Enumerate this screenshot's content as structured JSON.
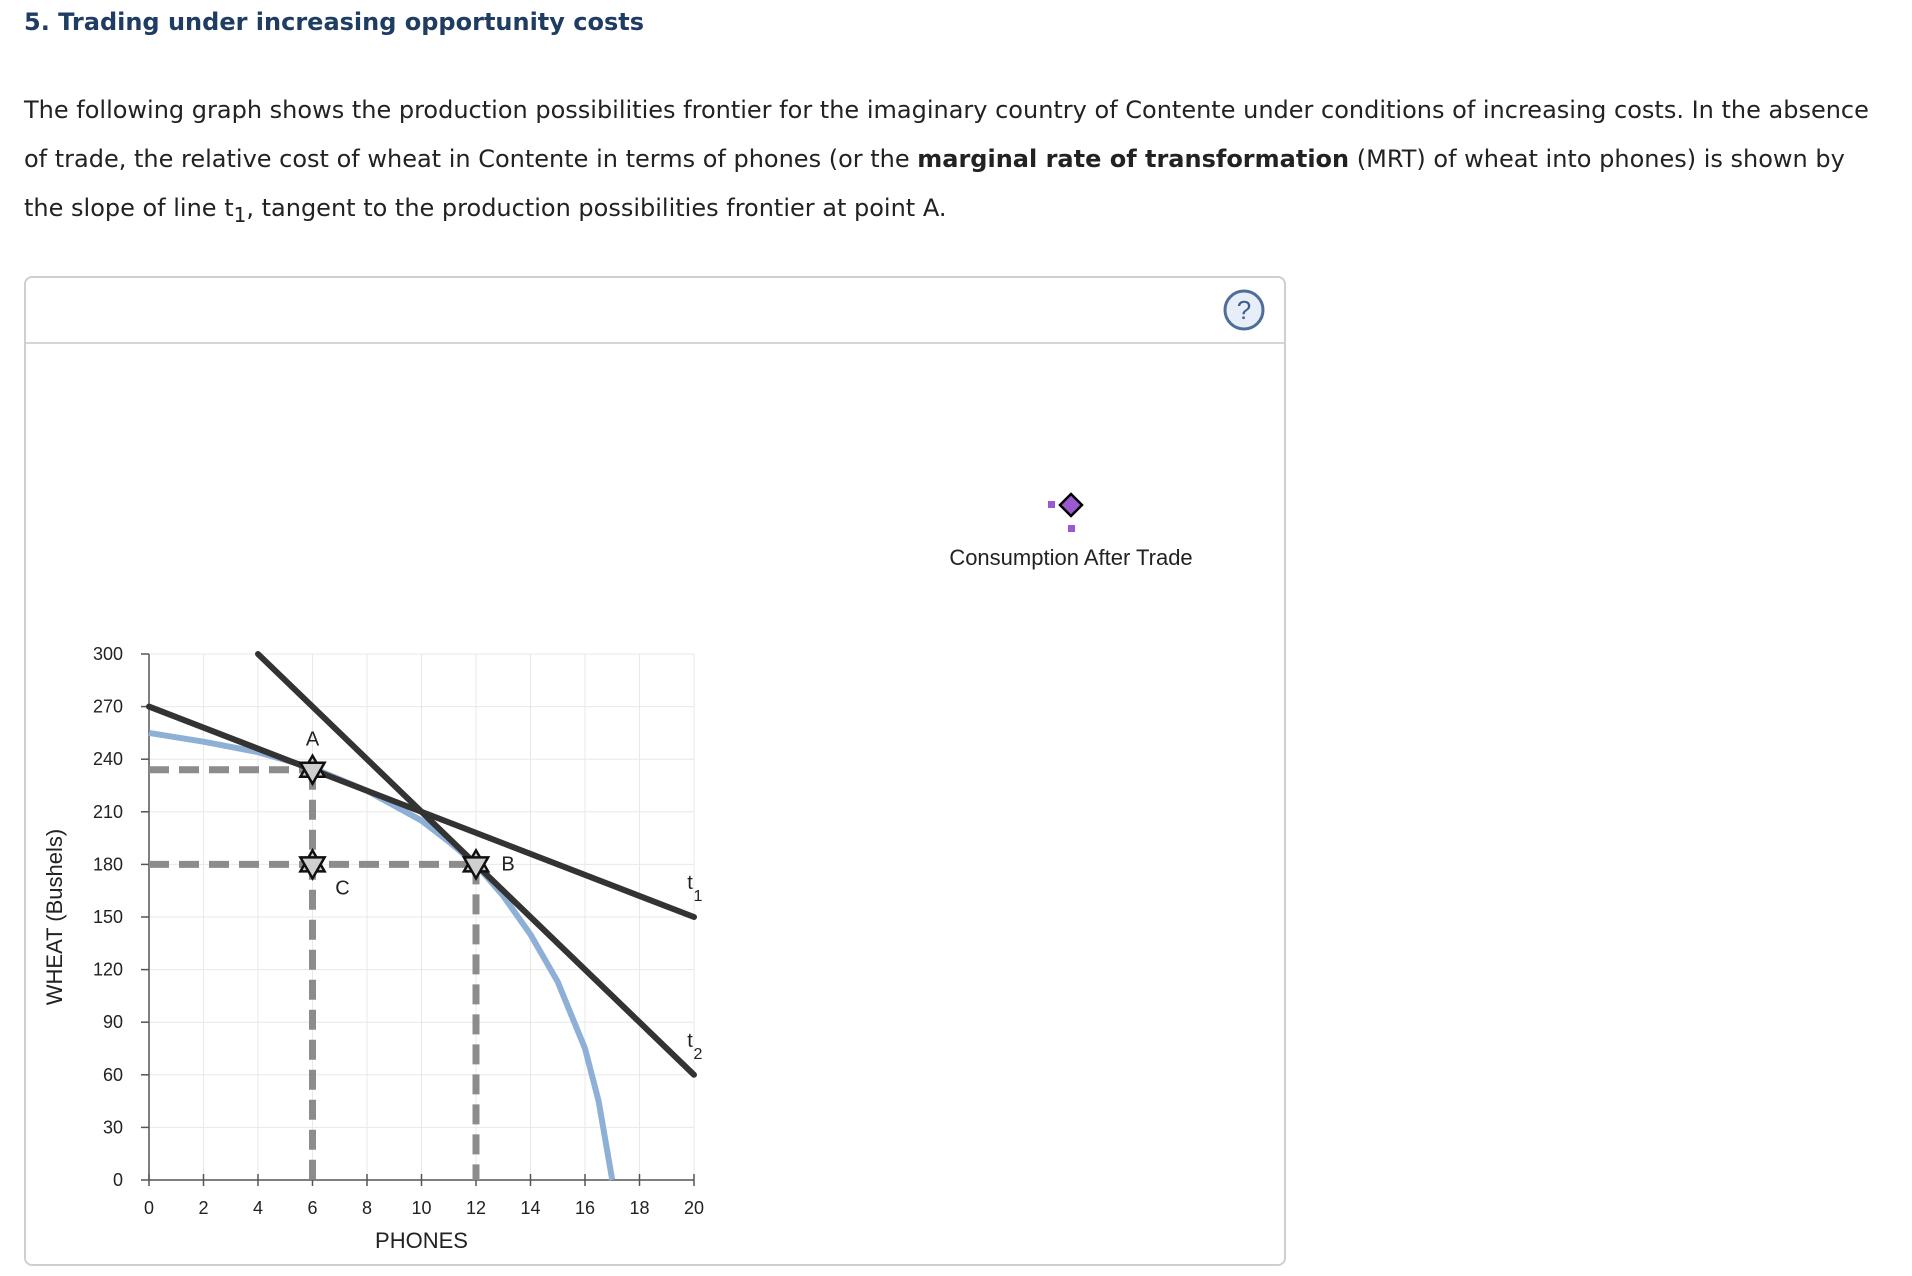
{
  "heading": "5. Trading under increasing opportunity costs",
  "intro": {
    "part1": "The following graph shows the production possibilities frontier for the imaginary country of Contente under conditions of increasing costs. In the absence of trade, the relative cost of wheat in Contente in terms of phones (or the ",
    "bold": "marginal rate of transformation",
    "part2": " (MRT) of wheat into phones) is shown by the slope of line t",
    "subscript": "1",
    "part3": ", tangent to the production possibilities frontier at point A."
  },
  "help_icon": "question-mark-icon",
  "tool": {
    "label": "Consumption After Trade",
    "icon": "diamond-point-icon",
    "color": "#9b59d0"
  },
  "colors": {
    "ppf": "#8fb0d6",
    "line": "#333333",
    "dashed": "#8c8c8c",
    "grid": "#e8e8e8"
  },
  "chart_data": {
    "type": "line",
    "title": "",
    "xlabel": "PHONES",
    "ylabel": "WHEAT (Bushels)",
    "xlim": [
      0,
      20
    ],
    "ylim": [
      0,
      300
    ],
    "x_ticks": [
      0,
      2,
      4,
      6,
      8,
      10,
      12,
      14,
      16,
      18,
      20
    ],
    "y_ticks": [
      0,
      30,
      60,
      90,
      120,
      150,
      180,
      210,
      240,
      270,
      300
    ],
    "ppf": {
      "name": "Production possibilities frontier",
      "x": [
        0,
        2,
        4,
        6,
        8,
        10,
        11,
        12,
        13,
        14,
        15,
        16,
        16.5,
        17
      ],
      "y": [
        255,
        250,
        244,
        235,
        222,
        205,
        193,
        180,
        162,
        140,
        113,
        75,
        45,
        0
      ]
    },
    "lines": [
      {
        "name": "t1",
        "label": "t",
        "sub": "1",
        "x": [
          0,
          20
        ],
        "y": [
          270,
          150
        ]
      },
      {
        "name": "t2",
        "label": "t",
        "sub": "2",
        "x": [
          4,
          20
        ],
        "y": [
          300,
          60
        ]
      }
    ],
    "points": [
      {
        "name": "A",
        "x": 6,
        "y": 234
      },
      {
        "name": "C",
        "x": 6,
        "y": 180
      },
      {
        "name": "B",
        "x": 12,
        "y": 180
      }
    ],
    "dashed_guides": [
      {
        "from": [
          0,
          234
        ],
        "to": [
          6,
          234
        ]
      },
      {
        "from": [
          6,
          234
        ],
        "to": [
          6,
          0
        ]
      },
      {
        "from": [
          0,
          180
        ],
        "to": [
          12,
          180
        ]
      },
      {
        "from": [
          12,
          180
        ],
        "to": [
          12,
          0
        ]
      }
    ]
  }
}
